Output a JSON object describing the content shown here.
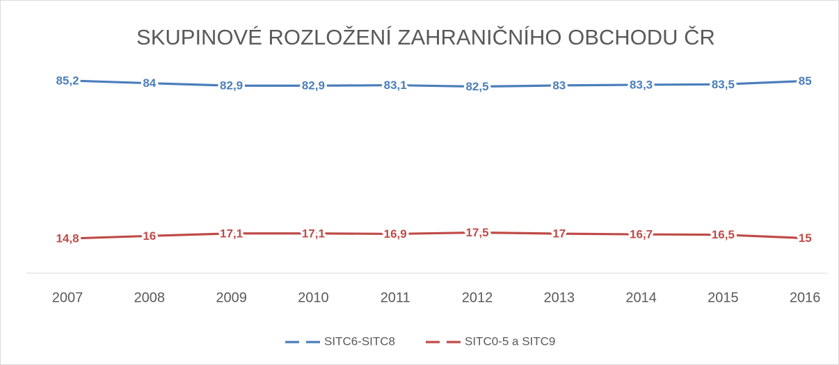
{
  "chart_data": {
    "type": "line",
    "title": "SKUPINOVÉ ROZLOŽENÍ ZAHRANIČNÍHO OBCHODU ČR",
    "categories": [
      "2007",
      "2008",
      "2009",
      "2010",
      "2011",
      "2012",
      "2013",
      "2014",
      "2015",
      "2016"
    ],
    "series": [
      {
        "name": "SITC6-SITC8",
        "color": "#4a7ebb",
        "values": [
          85.2,
          84,
          82.9,
          82.9,
          83.1,
          82.5,
          83,
          83.3,
          83.5,
          85
        ],
        "value_labels": [
          "85,2",
          "84",
          "82,9",
          "82,9",
          "83,1",
          "82,5",
          "83",
          "83,3",
          "83,5",
          "85"
        ]
      },
      {
        "name": "SITC0-5 a SITC9",
        "color": "#be4b48",
        "values": [
          14.8,
          16,
          17.1,
          17.1,
          16.9,
          17.5,
          17,
          16.7,
          16.5,
          15
        ],
        "value_labels": [
          "14,8",
          "16",
          "17,1",
          "17,1",
          "16,9",
          "17,5",
          "17",
          "16,7",
          "16,5",
          "15"
        ]
      }
    ],
    "ylim": [
      0,
      100
    ],
    "legend": "bottom"
  }
}
